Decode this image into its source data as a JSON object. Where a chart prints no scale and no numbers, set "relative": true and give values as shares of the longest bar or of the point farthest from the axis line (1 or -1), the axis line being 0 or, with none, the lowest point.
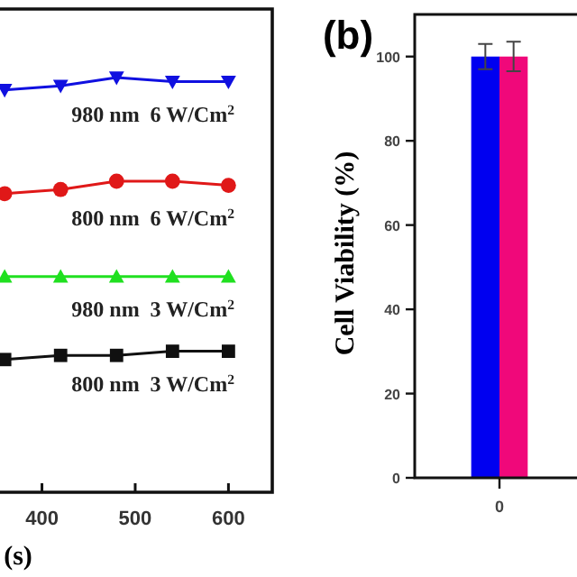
{
  "chart_data": [
    {
      "type": "line",
      "xlabel": "(s)",
      "relative": true,
      "tick_labels": "x",
      "x": [
        360,
        420,
        480,
        540,
        600
      ],
      "xlim": [
        355,
        647
      ],
      "xticks": [
        400,
        500,
        600
      ],
      "series": [
        {
          "name": "980 nm  6 W/Cm$^{2}$",
          "color": "#1010e0",
          "marker": "triangle-down",
          "values": [
            0.97,
            0.98,
            1,
            0.99,
            0.99
          ]
        },
        {
          "name": "800 nm  6 W/Cm$^{2}$",
          "color": "#e01818",
          "marker": "circle",
          "values": [
            0.72,
            0.73,
            0.75,
            0.75,
            0.74
          ]
        },
        {
          "name": "980 nm  3 W/Cm$^{2}$",
          "color": "#20e020",
          "marker": "triangle",
          "values": [
            0.52,
            0.52,
            0.52,
            0.52,
            0.52
          ]
        },
        {
          "name": "800 nm  3 W/Cm$^{2}$",
          "color": "#101010",
          "marker": "square",
          "values": [
            0.32,
            0.33,
            0.33,
            0.34,
            0.34
          ]
        }
      ]
    },
    {
      "type": "bar",
      "title": "(b)",
      "ylabel": "Cell Viability (%)",
      "categories": [
        "0"
      ],
      "ylim": [
        0,
        110
      ],
      "yticks": [
        0,
        20,
        40,
        60,
        80,
        100
      ],
      "series": [
        {
          "color": "#0000f0",
          "values": [
            100
          ],
          "errors": [
            3
          ]
        },
        {
          "color": "#f0087a",
          "values": [
            100
          ],
          "errors": [
            3.5
          ]
        }
      ]
    }
  ]
}
